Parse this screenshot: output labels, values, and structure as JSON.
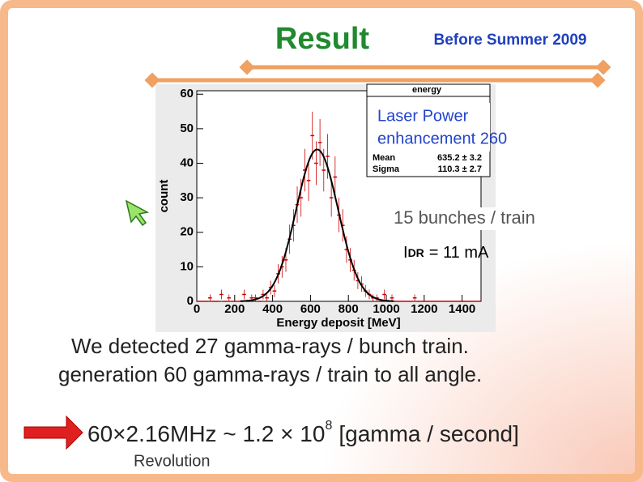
{
  "slide": {
    "title": "Result",
    "subtitle": "Before Summer 2009",
    "annotations": [
      "Laser Power",
      "enhancement 260",
      "15 bunches / train"
    ],
    "current": {
      "symbol": "I",
      "subscript": "DR",
      "value": "= 11 mA"
    },
    "lines": [
      "We detected 27 gamma-rays / bunch train.",
      "generation 60 gamma-rays / train to all angle."
    ],
    "rate": {
      "base": "60×2.16MHz ~ 1.2 × 10",
      "exponent": "8",
      "unit": "[gamma / second]"
    },
    "note": "Revolution"
  },
  "chart_data": {
    "type": "histogram",
    "x_label": "Energy deposit [MeV]",
    "y_label": "count",
    "stats_title": "energy",
    "stats": [
      {
        "label": "Mean",
        "value": "635.2 ± 3.2"
      },
      {
        "label": "Sigma",
        "value": "110.3 ± 2.7"
      }
    ],
    "bins": [
      0,
      20,
      40,
      60,
      80,
      100,
      120,
      140,
      160,
      180,
      200,
      220,
      240,
      260,
      280,
      300,
      320,
      340,
      360,
      380,
      400,
      420,
      440,
      460,
      480,
      500,
      520,
      540,
      560,
      580,
      600,
      620,
      640,
      660,
      680,
      700,
      720,
      740,
      760,
      780,
      800,
      820,
      840,
      860,
      880,
      900,
      920,
      940,
      960,
      980,
      1000,
      1020,
      1040,
      1060,
      1080,
      1100,
      1120,
      1140,
      1160,
      1180,
      1200,
      1220,
      1240,
      1260,
      1280,
      1300,
      1320,
      1340,
      1360,
      1380,
      1400,
      1420,
      1440,
      1460,
      1480,
      1500
    ],
    "values": [
      0,
      0,
      0,
      1,
      0,
      0,
      2,
      0,
      1,
      0,
      0,
      0,
      2,
      0,
      1,
      1,
      0,
      2,
      1,
      4,
      3,
      8,
      10,
      12,
      18,
      22,
      28,
      30,
      38,
      35,
      48,
      40,
      46,
      38,
      42,
      30,
      36,
      25,
      22,
      15,
      12,
      9,
      6,
      5,
      3,
      2,
      1,
      1,
      0,
      2,
      0,
      1,
      0,
      0,
      0,
      0,
      0,
      1,
      0,
      0,
      0,
      0,
      0,
      0,
      0,
      0,
      0,
      0,
      0,
      0,
      0,
      0,
      0,
      0,
      0
    ],
    "color": "#cc0000",
    "fit": {
      "peak": 44,
      "mean": 635.2,
      "sigma": 110.3,
      "color": "#000000"
    },
    "xlim": [
      0,
      1500
    ],
    "ylim": [
      0,
      61
    ],
    "xticks": [
      0,
      200,
      400,
      600,
      800,
      1000,
      1200,
      1400
    ],
    "yticks": [
      0,
      10,
      20,
      30,
      40,
      50,
      60
    ]
  }
}
